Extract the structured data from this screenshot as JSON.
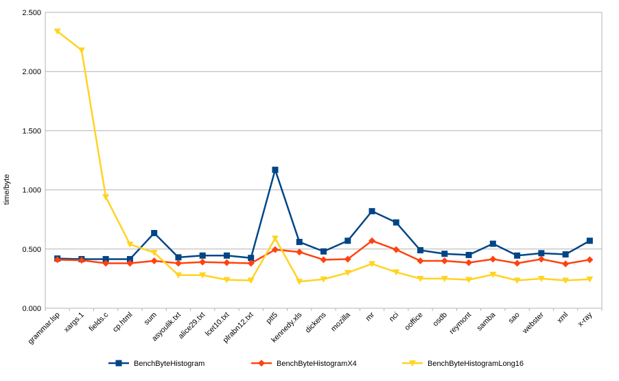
{
  "chart_data": {
    "type": "line",
    "title": "",
    "xlabel": "",
    "ylabel": "time/byte",
    "ylim": [
      0,
      2.5
    ],
    "yticks": [
      "0.000",
      "0.500",
      "1.000",
      "1.500",
      "2.000",
      "2.500"
    ],
    "ytick_values": [
      0,
      0.5,
      1.0,
      1.5,
      2.0,
      2.5
    ],
    "grid": true,
    "legend_position": "bottom",
    "categories": [
      "grammar.lsp",
      "xargs.1",
      "fields.c",
      "cp.html",
      "sum",
      "asyoulik.txt",
      "alice29.txt",
      "lcet10.txt",
      "plrabn12.txt",
      "ptt5",
      "kennedy.xls",
      "dickens",
      "mozilla",
      "mr",
      "nci",
      "ooffice",
      "osdb",
      "reymont",
      "samba",
      "sao",
      "webster",
      "xml",
      "x-ray"
    ],
    "series": [
      {
        "name": "BenchByteHistogram",
        "color": "#004586",
        "marker": "square",
        "values": [
          0.42,
          0.415,
          0.415,
          0.415,
          0.635,
          0.43,
          0.445,
          0.445,
          0.425,
          1.17,
          0.56,
          0.48,
          0.57,
          0.82,
          0.725,
          0.49,
          0.46,
          0.45,
          0.545,
          0.445,
          0.465,
          0.455,
          0.57
        ]
      },
      {
        "name": "BenchByteHistogramX4",
        "color": "#ff420e",
        "marker": "diamond",
        "values": [
          0.41,
          0.405,
          0.38,
          0.38,
          0.4,
          0.38,
          0.39,
          0.385,
          0.38,
          0.495,
          0.475,
          0.41,
          0.415,
          0.57,
          0.495,
          0.4,
          0.4,
          0.385,
          0.415,
          0.38,
          0.415,
          0.375,
          0.41
        ]
      },
      {
        "name": "BenchByteHistogramLong16",
        "color": "#ffd320",
        "marker": "triangle-down",
        "values": [
          2.34,
          2.18,
          0.94,
          0.54,
          0.47,
          0.28,
          0.28,
          0.24,
          0.235,
          0.59,
          0.225,
          0.245,
          0.3,
          0.375,
          0.305,
          0.25,
          0.25,
          0.24,
          0.285,
          0.235,
          0.25,
          0.235,
          0.245
        ]
      }
    ]
  }
}
